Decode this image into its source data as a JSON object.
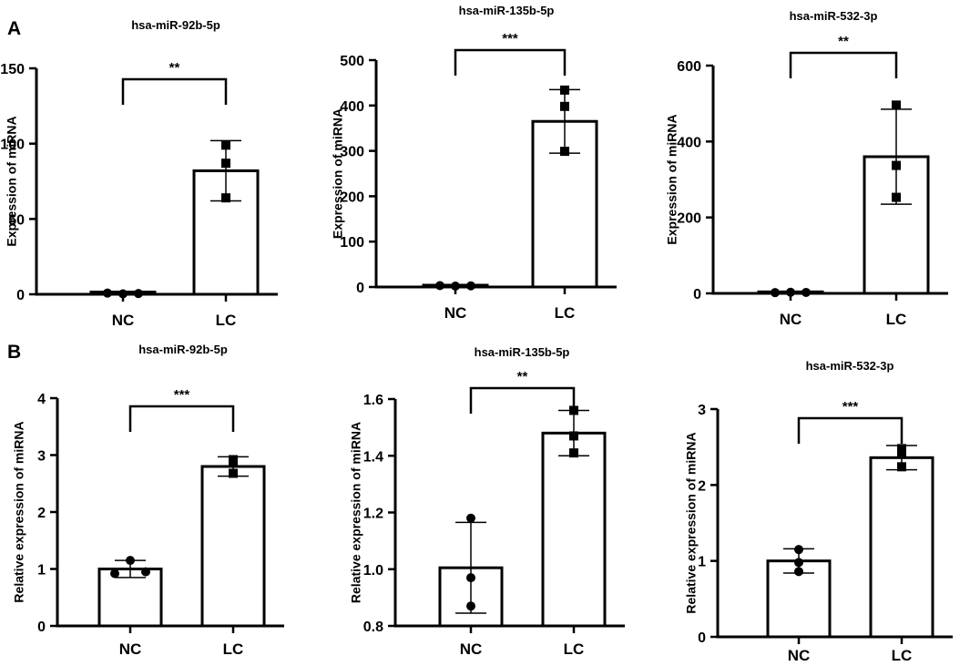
{
  "figure": {
    "panel_labels": [
      "A",
      "B"
    ]
  },
  "chart_data": [
    {
      "type": "bar",
      "panel": "A",
      "title": "hsa-miR-92b-5p",
      "ylabel": "Expression of  miRNA",
      "categories": [
        "NC",
        "LC"
      ],
      "values": [
        1.5,
        82
      ],
      "error": [
        0.5,
        20
      ],
      "points": [
        [
          0.8,
          0.3,
          0.5
        ],
        [
          99,
          87,
          64
        ]
      ],
      "ylim": [
        0,
        150
      ],
      "yticks": [
        0,
        50,
        100,
        150
      ],
      "significance": "**"
    },
    {
      "type": "bar",
      "panel": "A",
      "title": "hsa-miR-135b-5p",
      "ylabel": "Expression of  miRNA",
      "categories": [
        "NC",
        "LC"
      ],
      "values": [
        4,
        365
      ],
      "error": [
        1,
        70
      ],
      "points": [
        [
          3,
          2,
          2.5
        ],
        [
          434,
          398,
          299
        ]
      ],
      "ylim": [
        0,
        500
      ],
      "yticks": [
        0,
        100,
        200,
        300,
        400,
        500
      ],
      "significance": "***"
    },
    {
      "type": "bar",
      "panel": "A",
      "title": "hsa-miR-532-3p",
      "ylabel": "Expression of  miRNA",
      "categories": [
        "NC",
        "LC"
      ],
      "values": [
        4,
        360
      ],
      "error": [
        1,
        125
      ],
      "points": [
        [
          2,
          3,
          2.5
        ],
        [
          496,
          337,
          253
        ]
      ],
      "ylim": [
        0,
        600
      ],
      "yticks": [
        0,
        200,
        400,
        600
      ],
      "significance": "**"
    },
    {
      "type": "bar",
      "panel": "B",
      "title": "hsa-miR-92b-5p",
      "ylabel": "Relative expression of  miRNA",
      "categories": [
        "NC",
        "LC"
      ],
      "values": [
        1.0,
        2.8
      ],
      "error": [
        0.15,
        0.17
      ],
      "points": [
        [
          0.92,
          1.15,
          0.95
        ],
        [
          2.68,
          2.9,
          2.92
        ]
      ],
      "ylim": [
        0,
        4
      ],
      "yticks": [
        0,
        1,
        2,
        3,
        4
      ],
      "significance": "***"
    },
    {
      "type": "bar",
      "panel": "B",
      "title": "hsa-miR-135b-5p",
      "ylabel": "Relative expression of  miRNA",
      "categories": [
        "NC",
        "LC"
      ],
      "values": [
        1.005,
        1.48
      ],
      "error": [
        0.16,
        0.08
      ],
      "points": [
        [
          1.18,
          0.97,
          0.87
        ],
        [
          1.56,
          1.47,
          1.41
        ]
      ],
      "ylim": [
        0.8,
        1.6
      ],
      "yticks": [
        0.8,
        1.0,
        1.2,
        1.4,
        1.6
      ],
      "ytick_labels": [
        "0.8",
        "1.0",
        "1.2",
        "1.4",
        "1.6"
      ],
      "significance": "**"
    },
    {
      "type": "bar",
      "panel": "B",
      "title": "hsa-miR-532-3p",
      "ylabel": "Relative expression of  miRNA",
      "categories": [
        "NC",
        "LC"
      ],
      "values": [
        1.0,
        2.36
      ],
      "error": [
        0.16,
        0.16
      ],
      "points": [
        [
          1.15,
          0.98,
          0.86
        ],
        [
          2.43,
          2.48,
          2.24
        ]
      ],
      "ylim": [
        0,
        3
      ],
      "yticks": [
        0,
        1,
        2,
        3
      ],
      "significance": "***"
    }
  ]
}
